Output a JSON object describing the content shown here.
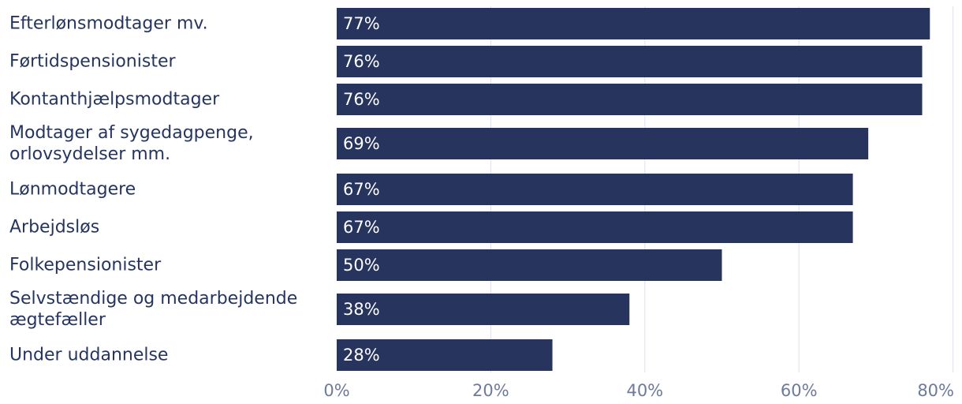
{
  "chart_data": {
    "type": "bar",
    "orientation": "horizontal",
    "categories": [
      [
        "Efterlønsmodtager mv."
      ],
      [
        "Førtidspensionister"
      ],
      [
        "Kontanthjælpsmodtager"
      ],
      [
        "Modtager af sygedagpenge,",
        "orlovsydelser mm."
      ],
      [
        "Lønmodtagere"
      ],
      [
        "Arbejdsløs"
      ],
      [
        "Folkepensionister"
      ],
      [
        "Selvstændige og medarbejdende",
        "ægtefæller"
      ],
      [
        "Under uddannelse"
      ]
    ],
    "values": [
      77,
      76,
      76,
      69,
      67,
      67,
      50,
      38,
      28
    ],
    "value_labels": [
      "77%",
      "76%",
      "76%",
      "69%",
      "67%",
      "67%",
      "50%",
      "38%",
      "28%"
    ],
    "xlim": [
      0,
      80
    ],
    "xticks": [
      0,
      20,
      40,
      60,
      80
    ],
    "xtick_labels": [
      "0%",
      "20%",
      "40%",
      "60%",
      "80%"
    ],
    "grid": true,
    "legend": "none",
    "colors": {
      "bar": "#26345e",
      "bar_label": "#ffffff",
      "category_label": "#253561",
      "tick_label": "#6c7a9c",
      "grid": "#dde1ee"
    }
  }
}
